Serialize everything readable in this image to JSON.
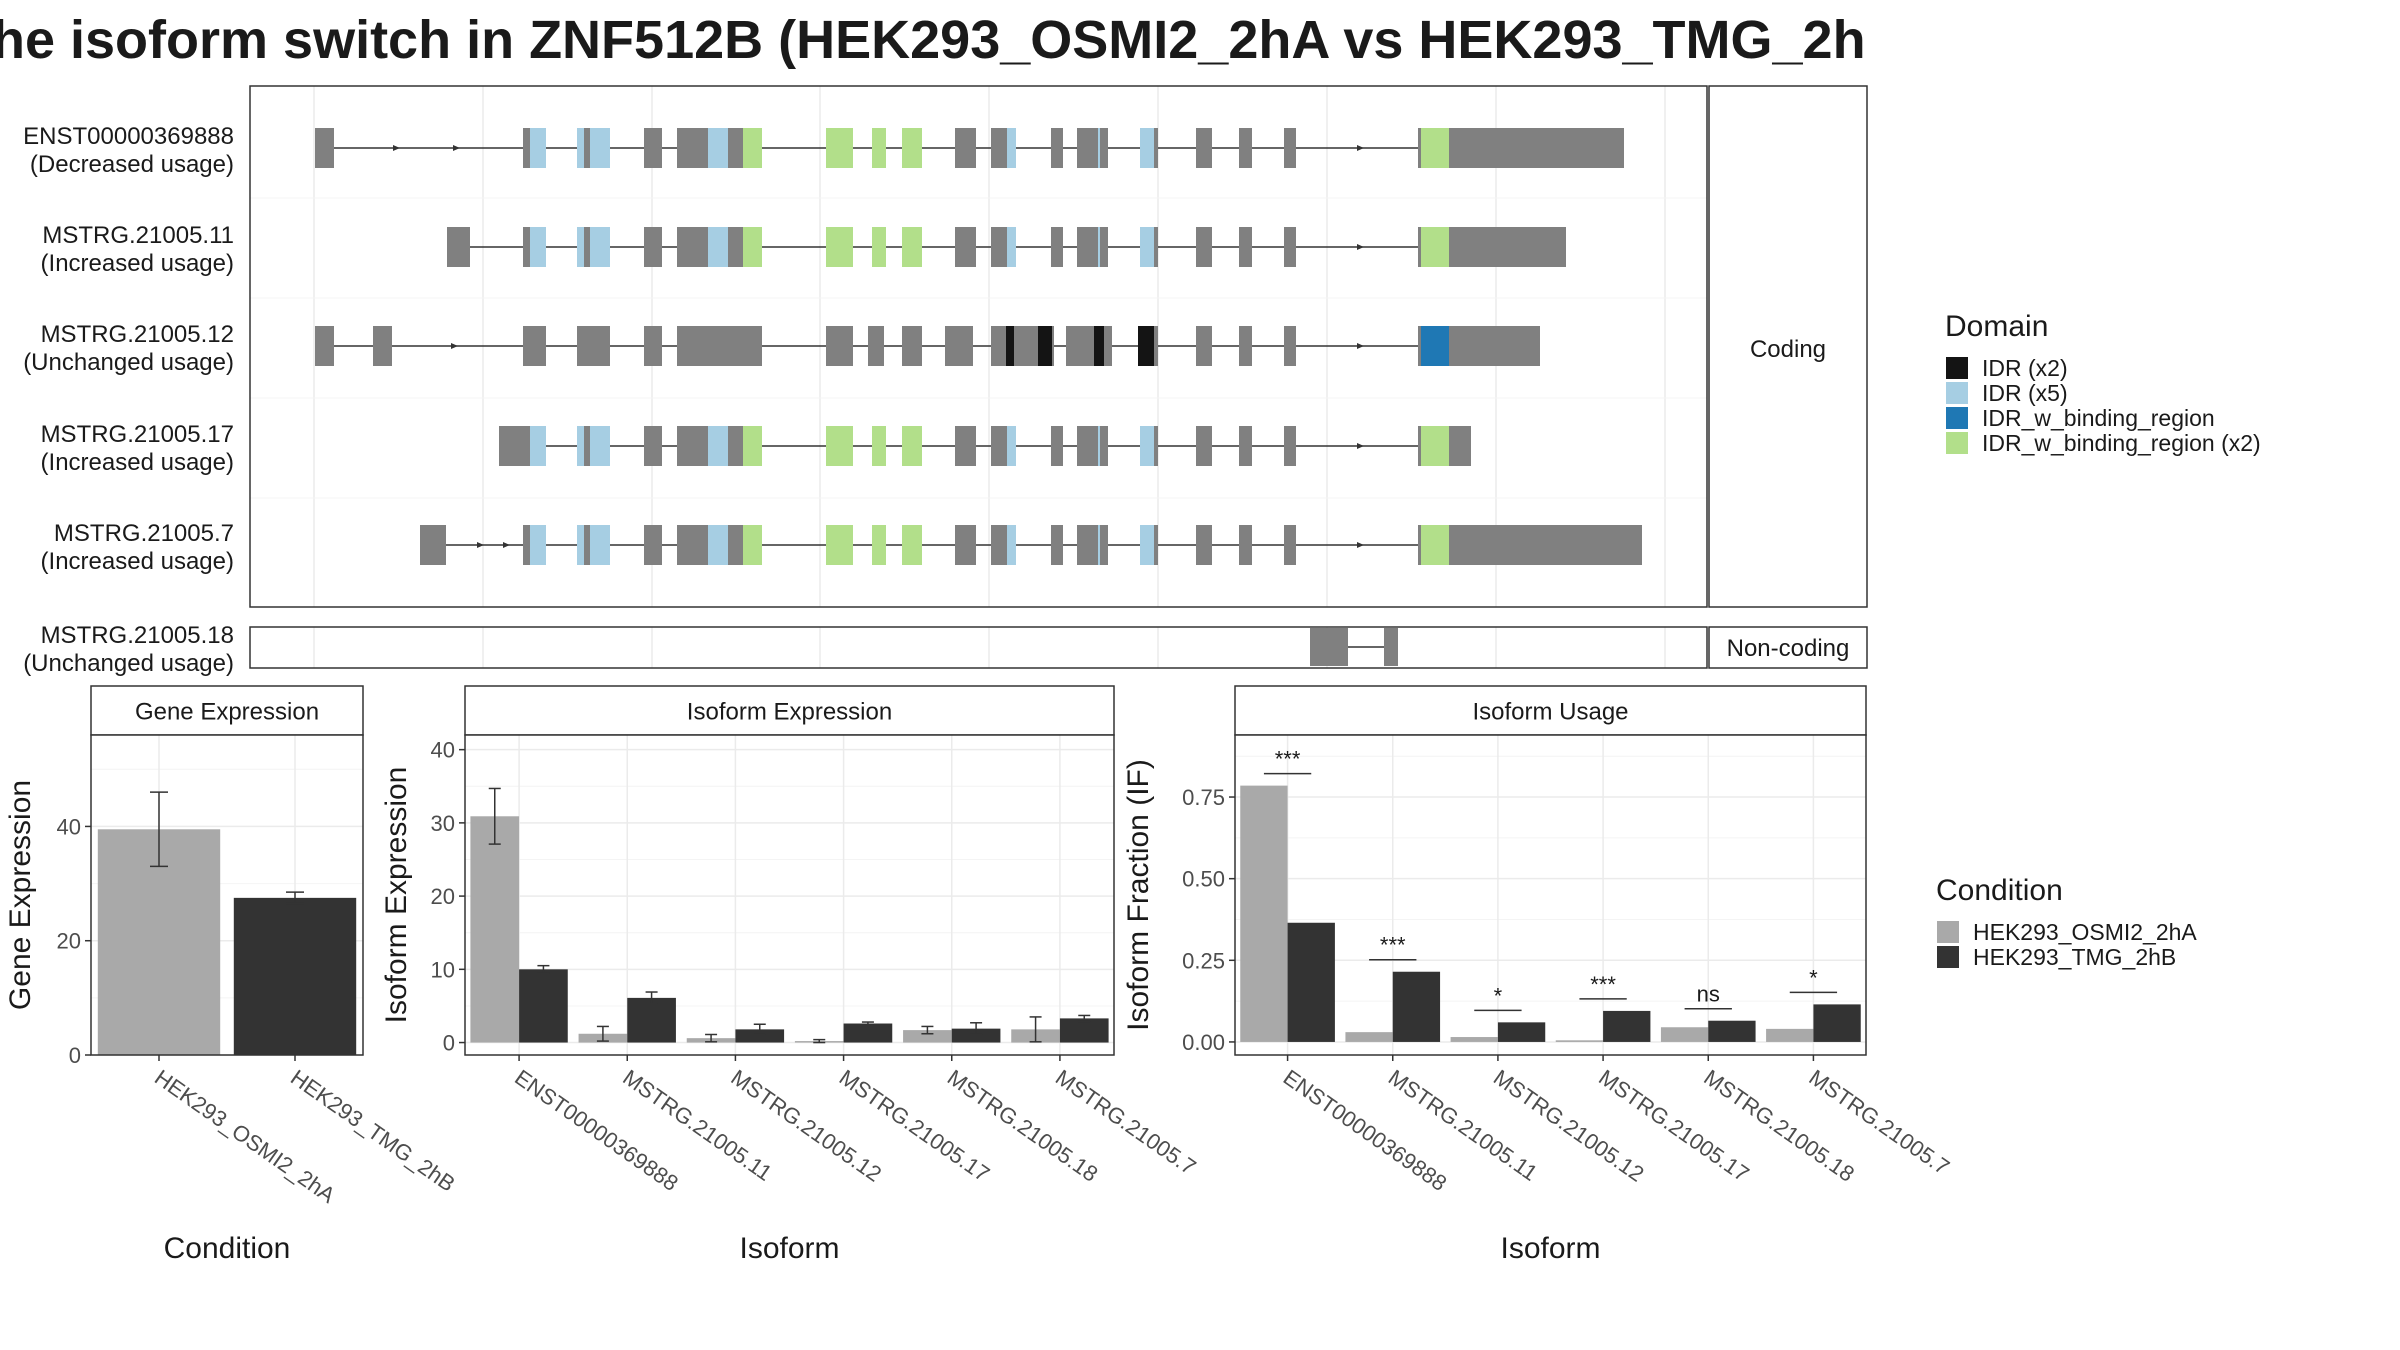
{
  "title": "he isoform switch in ZNF512B (HEK293_OSMI2_2hA vs HEK293_TMG_2h",
  "colors": {
    "exon": "#808080",
    "idr_x2": "#141414",
    "idr_x5": "#a6cee3",
    "idr_w_binding_region": "#1f78b4",
    "idr_w_binding_region_x2": "#b2df8a",
    "cond_a": "#a9a9a9",
    "cond_b": "#333333"
  },
  "structure": {
    "coding_strip": "Coding",
    "noncoding_strip": "Non-coding",
    "transcripts": [
      {
        "id": "ENST00000369888",
        "usage": "(Decreased usage)",
        "coding": true
      },
      {
        "id": "MSTRG.21005.11",
        "usage": "(Increased usage)",
        "coding": true
      },
      {
        "id": "MSTRG.21005.12",
        "usage": "(Unchanged usage)",
        "coding": true
      },
      {
        "id": "MSTRG.21005.17",
        "usage": "(Increased usage)",
        "coding": true
      },
      {
        "id": "MSTRG.21005.7",
        "usage": "(Increased usage)",
        "coding": true
      },
      {
        "id": "MSTRG.21005.18",
        "usage": "(Unchanged usage)",
        "coding": false
      }
    ],
    "domain_legend": {
      "title": "Domain",
      "items": [
        {
          "label": "IDR (x2)",
          "color": "#141414"
        },
        {
          "label": "IDR (x5)",
          "color": "#a6cee3"
        },
        {
          "label": "IDR_w_binding_region",
          "color": "#1f78b4"
        },
        {
          "label": "IDR_w_binding_region (x2)",
          "color": "#b2df8a"
        }
      ]
    }
  },
  "condition_legend": {
    "title": "Condition",
    "items": [
      {
        "label": "HEK293_OSMI2_2hA",
        "color": "#a9a9a9"
      },
      {
        "label": "HEK293_TMG_2hB",
        "color": "#333333"
      }
    ]
  },
  "chart_data": [
    {
      "type": "bar",
      "title": "Gene Expression",
      "xlabel": "Condition",
      "ylabel": "Gene Expression",
      "categories": [
        "HEK293_OSMI2_2hA",
        "HEK293_TMG_2hB"
      ],
      "values": [
        39.5,
        27.5
      ],
      "error_low": [
        33.0,
        26.5
      ],
      "error_high": [
        46.0,
        28.5
      ],
      "ylim": [
        0,
        56
      ],
      "yticks": [
        0,
        20,
        40
      ]
    },
    {
      "type": "bar",
      "title": "Isoform Expression",
      "xlabel": "Isoform",
      "ylabel": "Isoform Expression",
      "categories": [
        "ENST00000369888",
        "MSTRG.21005.11",
        "MSTRG.21005.12",
        "MSTRG.21005.17",
        "MSTRG.21005.18",
        "MSTRG.21005.7"
      ],
      "series": [
        {
          "name": "HEK293_OSMI2_2hA",
          "values": [
            30.9,
            1.2,
            0.6,
            0.2,
            1.7,
            1.8
          ],
          "err": [
            3.8,
            1.0,
            0.5,
            0.2,
            0.5,
            1.7
          ]
        },
        {
          "name": "HEK293_TMG_2hB",
          "values": [
            10.0,
            6.1,
            1.8,
            2.6,
            1.9,
            3.3
          ],
          "err": [
            0.5,
            0.8,
            0.7,
            0.2,
            0.8,
            0.4
          ]
        }
      ],
      "ylim": [
        -1.7,
        42
      ],
      "yticks": [
        0,
        10,
        20,
        30,
        40
      ]
    },
    {
      "type": "bar",
      "title": "Isoform Usage",
      "xlabel": "Isoform",
      "ylabel": "Isoform Fraction (IF)",
      "categories": [
        "ENST00000369888",
        "MSTRG.21005.11",
        "MSTRG.21005.12",
        "MSTRG.21005.17",
        "MSTRG.21005.18",
        "MSTRG.21005.7"
      ],
      "series": [
        {
          "name": "HEK293_OSMI2_2hA",
          "values": [
            0.785,
            0.03,
            0.015,
            0.005,
            0.045,
            0.04
          ]
        },
        {
          "name": "HEK293_TMG_2hB",
          "values": [
            0.365,
            0.215,
            0.06,
            0.095,
            0.065,
            0.115
          ]
        }
      ],
      "significance": [
        "***",
        "***",
        "*",
        "***",
        "ns",
        "*"
      ],
      "ylim": [
        -0.04,
        0.94
      ],
      "yticks": [
        0.0,
        0.25,
        0.5,
        0.75
      ],
      "ytick_labels": [
        "0.00",
        "0.25",
        "0.50",
        "0.75"
      ]
    }
  ]
}
